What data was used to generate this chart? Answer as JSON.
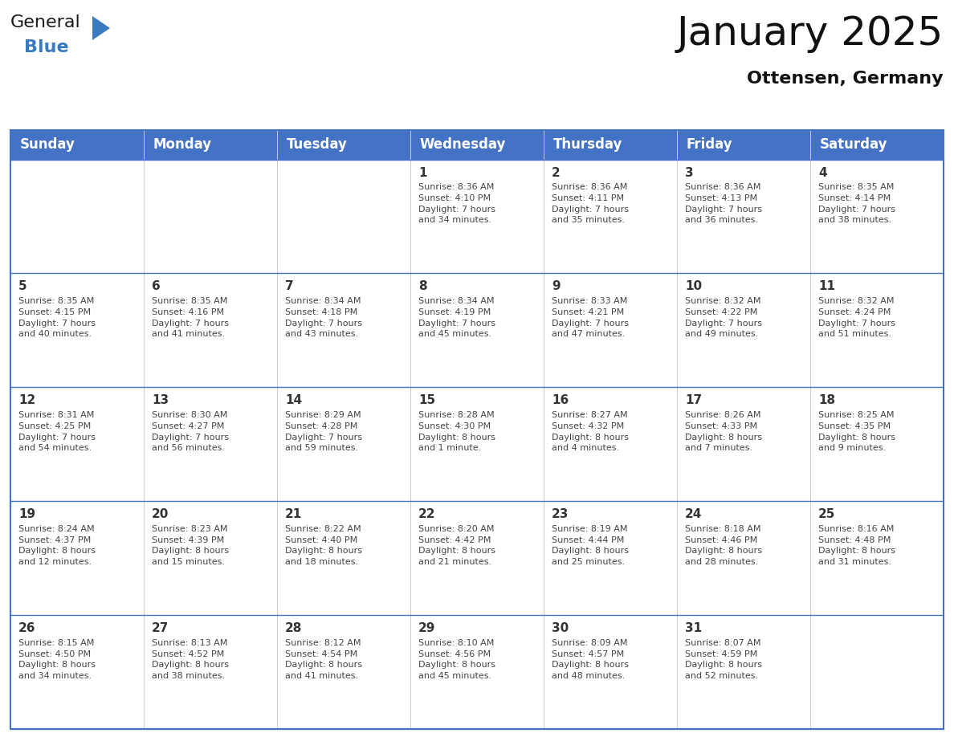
{
  "title": "January 2025",
  "subtitle": "Ottensen, Germany",
  "days_of_week": [
    "Sunday",
    "Monday",
    "Tuesday",
    "Wednesday",
    "Thursday",
    "Friday",
    "Saturday"
  ],
  "header_bg": "#4472C4",
  "header_text_color": "#FFFFFF",
  "border_color": "#4472C4",
  "row_divider_color": "#4472C4",
  "col_divider_color": "#CCCCCC",
  "text_color": "#444444",
  "day_num_color": "#333333",
  "title_color": "#111111",
  "subtitle_color": "#111111",
  "calendar": [
    [
      {
        "day": "",
        "info": ""
      },
      {
        "day": "",
        "info": ""
      },
      {
        "day": "",
        "info": ""
      },
      {
        "day": "1",
        "info": "Sunrise: 8:36 AM\nSunset: 4:10 PM\nDaylight: 7 hours\nand 34 minutes."
      },
      {
        "day": "2",
        "info": "Sunrise: 8:36 AM\nSunset: 4:11 PM\nDaylight: 7 hours\nand 35 minutes."
      },
      {
        "day": "3",
        "info": "Sunrise: 8:36 AM\nSunset: 4:13 PM\nDaylight: 7 hours\nand 36 minutes."
      },
      {
        "day": "4",
        "info": "Sunrise: 8:35 AM\nSunset: 4:14 PM\nDaylight: 7 hours\nand 38 minutes."
      }
    ],
    [
      {
        "day": "5",
        "info": "Sunrise: 8:35 AM\nSunset: 4:15 PM\nDaylight: 7 hours\nand 40 minutes."
      },
      {
        "day": "6",
        "info": "Sunrise: 8:35 AM\nSunset: 4:16 PM\nDaylight: 7 hours\nand 41 minutes."
      },
      {
        "day": "7",
        "info": "Sunrise: 8:34 AM\nSunset: 4:18 PM\nDaylight: 7 hours\nand 43 minutes."
      },
      {
        "day": "8",
        "info": "Sunrise: 8:34 AM\nSunset: 4:19 PM\nDaylight: 7 hours\nand 45 minutes."
      },
      {
        "day": "9",
        "info": "Sunrise: 8:33 AM\nSunset: 4:21 PM\nDaylight: 7 hours\nand 47 minutes."
      },
      {
        "day": "10",
        "info": "Sunrise: 8:32 AM\nSunset: 4:22 PM\nDaylight: 7 hours\nand 49 minutes."
      },
      {
        "day": "11",
        "info": "Sunrise: 8:32 AM\nSunset: 4:24 PM\nDaylight: 7 hours\nand 51 minutes."
      }
    ],
    [
      {
        "day": "12",
        "info": "Sunrise: 8:31 AM\nSunset: 4:25 PM\nDaylight: 7 hours\nand 54 minutes."
      },
      {
        "day": "13",
        "info": "Sunrise: 8:30 AM\nSunset: 4:27 PM\nDaylight: 7 hours\nand 56 minutes."
      },
      {
        "day": "14",
        "info": "Sunrise: 8:29 AM\nSunset: 4:28 PM\nDaylight: 7 hours\nand 59 minutes."
      },
      {
        "day": "15",
        "info": "Sunrise: 8:28 AM\nSunset: 4:30 PM\nDaylight: 8 hours\nand 1 minute."
      },
      {
        "day": "16",
        "info": "Sunrise: 8:27 AM\nSunset: 4:32 PM\nDaylight: 8 hours\nand 4 minutes."
      },
      {
        "day": "17",
        "info": "Sunrise: 8:26 AM\nSunset: 4:33 PM\nDaylight: 8 hours\nand 7 minutes."
      },
      {
        "day": "18",
        "info": "Sunrise: 8:25 AM\nSunset: 4:35 PM\nDaylight: 8 hours\nand 9 minutes."
      }
    ],
    [
      {
        "day": "19",
        "info": "Sunrise: 8:24 AM\nSunset: 4:37 PM\nDaylight: 8 hours\nand 12 minutes."
      },
      {
        "day": "20",
        "info": "Sunrise: 8:23 AM\nSunset: 4:39 PM\nDaylight: 8 hours\nand 15 minutes."
      },
      {
        "day": "21",
        "info": "Sunrise: 8:22 AM\nSunset: 4:40 PM\nDaylight: 8 hours\nand 18 minutes."
      },
      {
        "day": "22",
        "info": "Sunrise: 8:20 AM\nSunset: 4:42 PM\nDaylight: 8 hours\nand 21 minutes."
      },
      {
        "day": "23",
        "info": "Sunrise: 8:19 AM\nSunset: 4:44 PM\nDaylight: 8 hours\nand 25 minutes."
      },
      {
        "day": "24",
        "info": "Sunrise: 8:18 AM\nSunset: 4:46 PM\nDaylight: 8 hours\nand 28 minutes."
      },
      {
        "day": "25",
        "info": "Sunrise: 8:16 AM\nSunset: 4:48 PM\nDaylight: 8 hours\nand 31 minutes."
      }
    ],
    [
      {
        "day": "26",
        "info": "Sunrise: 8:15 AM\nSunset: 4:50 PM\nDaylight: 8 hours\nand 34 minutes."
      },
      {
        "day": "27",
        "info": "Sunrise: 8:13 AM\nSunset: 4:52 PM\nDaylight: 8 hours\nand 38 minutes."
      },
      {
        "day": "28",
        "info": "Sunrise: 8:12 AM\nSunset: 4:54 PM\nDaylight: 8 hours\nand 41 minutes."
      },
      {
        "day": "29",
        "info": "Sunrise: 8:10 AM\nSunset: 4:56 PM\nDaylight: 8 hours\nand 45 minutes."
      },
      {
        "day": "30",
        "info": "Sunrise: 8:09 AM\nSunset: 4:57 PM\nDaylight: 8 hours\nand 48 minutes."
      },
      {
        "day": "31",
        "info": "Sunrise: 8:07 AM\nSunset: 4:59 PM\nDaylight: 8 hours\nand 52 minutes."
      },
      {
        "day": "",
        "info": ""
      }
    ]
  ],
  "logo_text1": "General",
  "logo_text2": "Blue",
  "logo_text1_color": "#1a1a1a",
  "logo_text2_color": "#3a7abf",
  "logo_triangle_color": "#3a7abf",
  "fig_width": 11.88,
  "fig_height": 9.18,
  "dpi": 100
}
